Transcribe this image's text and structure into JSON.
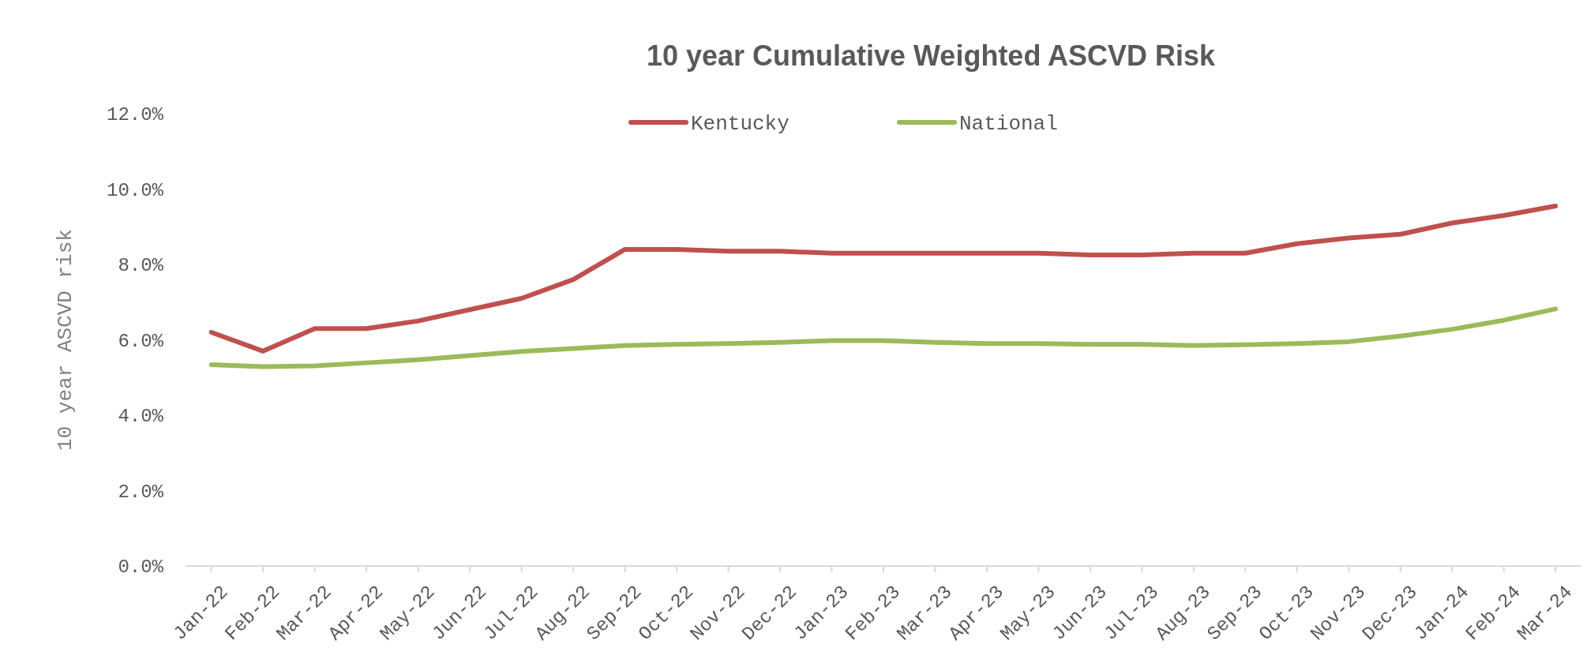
{
  "chart_data": {
    "type": "line",
    "title": "10 year Cumulative Weighted ASCVD Risk",
    "ylabel": "10 year ASCVD risk",
    "categories": [
      "Jan-22",
      "Feb-22",
      "Mar-22",
      "Apr-22",
      "May-22",
      "Jun-22",
      "Jul-22",
      "Aug-22",
      "Sep-22",
      "Oct-22",
      "Nov-22",
      "Dec-22",
      "Jan-23",
      "Feb-23",
      "Mar-23",
      "Apr-23",
      "May-23",
      "Jun-23",
      "Jul-23",
      "Aug-23",
      "Sep-23",
      "Oct-23",
      "Nov-23",
      "Dec-23",
      "Jan-24",
      "Feb-24",
      "Mar-24"
    ],
    "series": [
      {
        "name": "Kentucky",
        "color": "#c0504d",
        "values": [
          6.2,
          5.7,
          6.3,
          6.3,
          6.5,
          6.8,
          7.1,
          7.6,
          8.4,
          8.4,
          8.35,
          8.35,
          8.3,
          8.3,
          8.3,
          8.3,
          8.3,
          8.25,
          8.25,
          8.3,
          8.3,
          8.55,
          8.7,
          8.8,
          9.1,
          9.3,
          9.55
        ]
      },
      {
        "name": "National",
        "color": "#9bbb59",
        "values": [
          5.34,
          5.29,
          5.31,
          5.39,
          5.47,
          5.58,
          5.69,
          5.77,
          5.85,
          5.88,
          5.9,
          5.93,
          5.98,
          5.98,
          5.93,
          5.9,
          5.9,
          5.88,
          5.88,
          5.85,
          5.87,
          5.9,
          5.95,
          6.1,
          6.28,
          6.52,
          6.82
        ]
      }
    ],
    "ylim": [
      0,
      12
    ],
    "yticks": [
      {
        "value": 0,
        "label": "0.0%"
      },
      {
        "value": 2,
        "label": "2.0%"
      },
      {
        "value": 4,
        "label": "4.0%"
      },
      {
        "value": 6,
        "label": "6.0%"
      },
      {
        "value": 8,
        "label": "8.0%"
      },
      {
        "value": 10,
        "label": "10.0%"
      },
      {
        "value": 12,
        "label": "12.0%"
      }
    ],
    "grid": false,
    "legend": "top",
    "marker": "none",
    "line_style": "solid"
  }
}
